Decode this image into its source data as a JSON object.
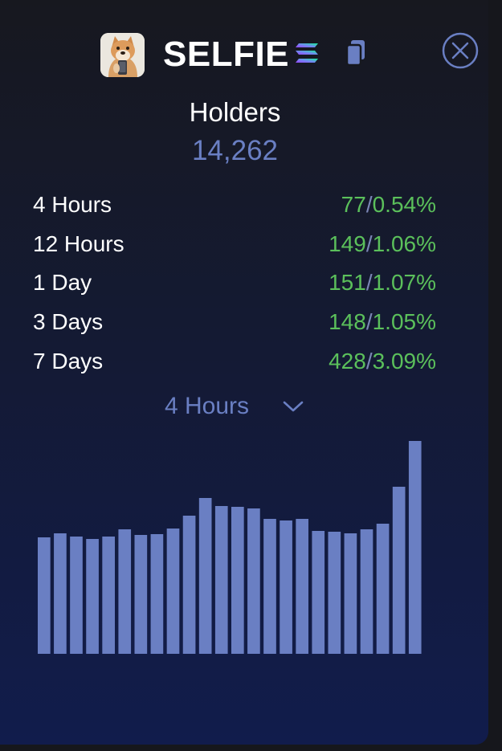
{
  "header": {
    "token_name": "SELFIE",
    "avatar_icon": "shiba-selfie-avatar",
    "chain_icon": "solana-icon",
    "copy_icon": "copy-icon",
    "close_icon": "close-circle-icon"
  },
  "holders": {
    "label": "Holders",
    "count": "14,262"
  },
  "stats": [
    {
      "label": "4 Hours",
      "count": "77",
      "percent": "0.54%"
    },
    {
      "label": "12 Hours",
      "count": "149",
      "percent": "1.06%"
    },
    {
      "label": "1 Day",
      "count": "151",
      "percent": "1.07%"
    },
    {
      "label": "3 Days",
      "count": "148",
      "percent": "1.05%"
    },
    {
      "label": "7 Days",
      "count": "428",
      "percent": "3.09%"
    }
  ],
  "period_select": {
    "selected": "4 Hours"
  },
  "colors": {
    "accent": "#6a7fc3",
    "positive": "#5bc05b",
    "bar": "#6a7fc3"
  },
  "chart_data": {
    "type": "bar",
    "values": [
      145,
      150,
      146,
      143,
      146,
      155,
      148,
      149,
      156,
      172,
      194,
      184,
      183,
      181,
      168,
      166,
      168,
      153,
      152,
      150,
      155,
      162,
      208,
      265
    ],
    "ylim": [
      0,
      265
    ],
    "grid": false,
    "legend": "none"
  }
}
